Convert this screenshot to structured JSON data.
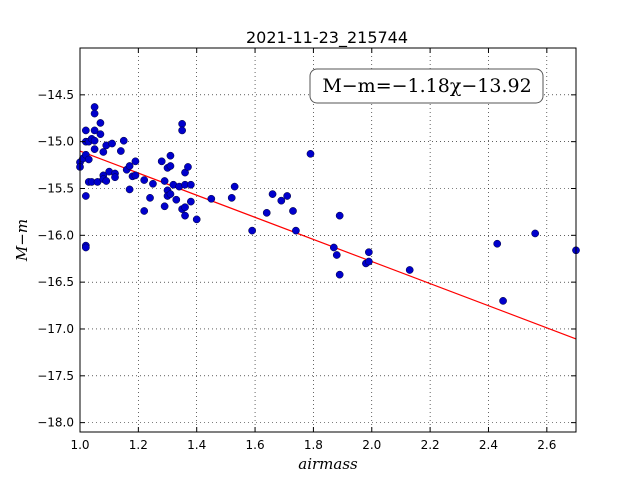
{
  "chart_data": {
    "type": "scatter",
    "title": "2021-11-23_215744",
    "xlabel": "airmass",
    "ylabel": "M−m",
    "xlim": [
      1.0,
      2.7
    ],
    "ylim": [
      -18.1,
      -14.0
    ],
    "xticks": [
      1.0,
      1.2,
      1.4,
      1.6,
      1.8,
      2.0,
      2.2,
      2.4,
      2.6
    ],
    "xtick_labels": [
      "1.0",
      "1.2",
      "1.4",
      "1.6",
      "1.8",
      "2.0",
      "2.2",
      "2.4",
      "2.6"
    ],
    "yticks": [
      -14.5,
      -15.0,
      -15.5,
      -16.0,
      -16.5,
      -17.0,
      -17.5,
      -18.0
    ],
    "ytick_labels": [
      "−14.5",
      "−15.0",
      "−15.5",
      "−16.0",
      "−16.5",
      "−17.0",
      "−17.5",
      "−18.0"
    ],
    "grid": true,
    "annotation": "M−m=−1.18χ−13.92",
    "fit": {
      "slope": -1.18,
      "intercept": -13.92,
      "color": "#ff0000"
    },
    "point_color": "#0000cc",
    "points": [
      [
        1.0,
        -15.22
      ],
      [
        1.0,
        -15.27
      ],
      [
        1.01,
        -15.18
      ],
      [
        1.02,
        -14.88
      ],
      [
        1.02,
        -15.0
      ],
      [
        1.02,
        -15.14
      ],
      [
        1.02,
        -15.58
      ],
      [
        1.02,
        -16.11
      ],
      [
        1.02,
        -16.13
      ],
      [
        1.03,
        -15.0
      ],
      [
        1.03,
        -15.19
      ],
      [
        1.03,
        -15.43
      ],
      [
        1.04,
        -14.97
      ],
      [
        1.04,
        -15.43
      ],
      [
        1.05,
        -14.63
      ],
      [
        1.05,
        -14.7
      ],
      [
        1.05,
        -14.88
      ],
      [
        1.05,
        -14.99
      ],
      [
        1.05,
        -15.08
      ],
      [
        1.06,
        -15.43
      ],
      [
        1.07,
        -14.8
      ],
      [
        1.07,
        -14.92
      ],
      [
        1.08,
        -15.11
      ],
      [
        1.08,
        -15.36
      ],
      [
        1.08,
        -15.4
      ],
      [
        1.09,
        -15.04
      ],
      [
        1.09,
        -15.42
      ],
      [
        1.1,
        -15.32
      ],
      [
        1.11,
        -15.02
      ],
      [
        1.12,
        -15.34
      ],
      [
        1.12,
        -15.38
      ],
      [
        1.14,
        -15.1
      ],
      [
        1.15,
        -14.99
      ],
      [
        1.16,
        -15.3
      ],
      [
        1.17,
        -15.26
      ],
      [
        1.17,
        -15.51
      ],
      [
        1.18,
        -15.37
      ],
      [
        1.19,
        -15.21
      ],
      [
        1.19,
        -15.36
      ],
      [
        1.22,
        -15.41
      ],
      [
        1.22,
        -15.74
      ],
      [
        1.24,
        -15.6
      ],
      [
        1.25,
        -15.45
      ],
      [
        1.28,
        -15.21
      ],
      [
        1.29,
        -15.42
      ],
      [
        1.29,
        -15.69
      ],
      [
        1.3,
        -15.28
      ],
      [
        1.3,
        -15.52
      ],
      [
        1.3,
        -15.58
      ],
      [
        1.31,
        -15.15
      ],
      [
        1.31,
        -15.26
      ],
      [
        1.31,
        -15.56
      ],
      [
        1.32,
        -15.46
      ],
      [
        1.33,
        -15.62
      ],
      [
        1.34,
        -15.48
      ],
      [
        1.35,
        -14.81
      ],
      [
        1.35,
        -14.88
      ],
      [
        1.35,
        -15.72
      ],
      [
        1.36,
        -15.33
      ],
      [
        1.36,
        -15.46
      ],
      [
        1.36,
        -15.7
      ],
      [
        1.36,
        -15.79
      ],
      [
        1.37,
        -15.27
      ],
      [
        1.38,
        -15.46
      ],
      [
        1.38,
        -15.64
      ],
      [
        1.4,
        -15.83
      ],
      [
        1.45,
        -15.61
      ],
      [
        1.52,
        -15.6
      ],
      [
        1.53,
        -15.48
      ],
      [
        1.59,
        -15.95
      ],
      [
        1.64,
        -15.76
      ],
      [
        1.66,
        -15.56
      ],
      [
        1.69,
        -15.63
      ],
      [
        1.71,
        -15.58
      ],
      [
        1.73,
        -15.74
      ],
      [
        1.74,
        -15.95
      ],
      [
        1.79,
        -15.13
      ],
      [
        1.87,
        -16.13
      ],
      [
        1.88,
        -16.21
      ],
      [
        1.89,
        -16.42
      ],
      [
        1.89,
        -15.79
      ],
      [
        1.98,
        -16.3
      ],
      [
        1.99,
        -16.18
      ],
      [
        1.99,
        -16.28
      ],
      [
        2.13,
        -16.37
      ],
      [
        2.43,
        -16.09
      ],
      [
        2.45,
        -16.7
      ],
      [
        2.56,
        -15.98
      ],
      [
        2.7,
        -16.16
      ]
    ]
  }
}
